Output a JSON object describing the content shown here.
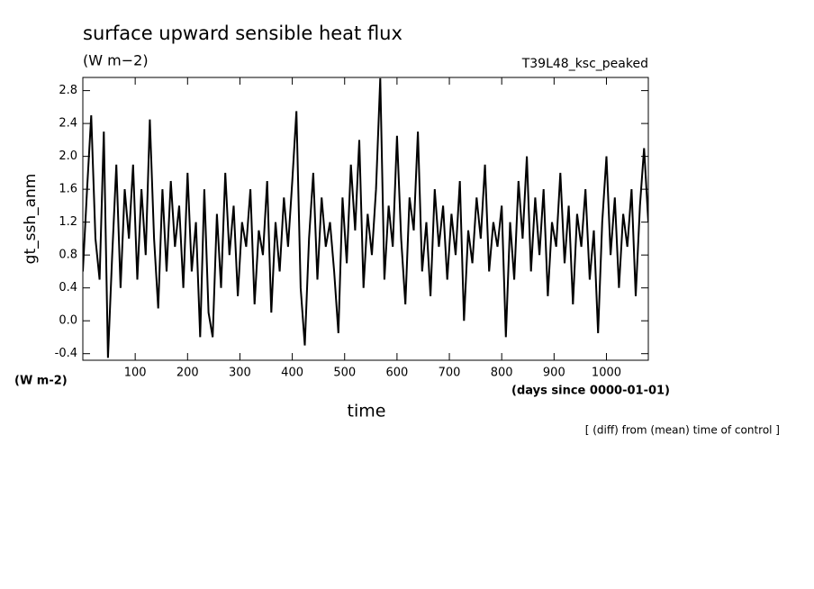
{
  "chart_data": {
    "type": "line",
    "title": "surface upward sensible heat flux",
    "units": "(W m−2)",
    "experiment": "T39L48_ksc_peaked",
    "y_label": "gt_ssh_anm",
    "y_units": "(W m-2)",
    "x_label": "time",
    "x_units": "(days since 0000-01-01)",
    "note": "[ (diff) from (mean) time of control ]",
    "color": "#000000",
    "xlim": [
      0,
      1080
    ],
    "ylim": [
      -0.48,
      2.96
    ],
    "xticks": [
      100,
      200,
      300,
      400,
      500,
      600,
      700,
      800,
      900,
      1000
    ],
    "yticks": [
      -0.4,
      {
        "value": 0,
        "label": "0.0"
      },
      0.4,
      0.8,
      1.2,
      1.6,
      {
        "value": 2,
        "label": "2.0"
      },
      2.4,
      2.8
    ],
    "x": [
      0,
      8,
      16,
      24,
      32,
      40,
      48,
      56,
      64,
      72,
      80,
      88,
      96,
      104,
      112,
      120,
      128,
      136,
      144,
      152,
      160,
      168,
      176,
      184,
      192,
      200,
      208,
      216,
      224,
      232,
      240,
      248,
      256,
      264,
      272,
      280,
      288,
      296,
      304,
      312,
      320,
      328,
      336,
      344,
      352,
      360,
      368,
      376,
      384,
      392,
      400,
      408,
      416,
      424,
      432,
      440,
      448,
      456,
      464,
      472,
      480,
      488,
      496,
      504,
      512,
      520,
      528,
      536,
      544,
      552,
      560,
      568,
      576,
      584,
      592,
      600,
      608,
      616,
      624,
      632,
      640,
      648,
      656,
      664,
      672,
      680,
      688,
      696,
      704,
      712,
      720,
      728,
      736,
      744,
      752,
      760,
      768,
      776,
      784,
      792,
      800,
      808,
      816,
      824,
      832,
      840,
      848,
      856,
      864,
      872,
      880,
      888,
      896,
      904,
      912,
      920,
      928,
      936,
      944,
      952,
      960,
      968,
      976,
      984,
      992,
      1000,
      1008,
      1016,
      1024,
      1032,
      1040,
      1048,
      1056,
      1064,
      1072,
      1080
    ],
    "values": [
      0.6,
      1.6,
      2.5,
      1.0,
      0.5,
      2.3,
      -0.45,
      0.8,
      1.9,
      0.4,
      1.6,
      1.0,
      1.9,
      0.5,
      1.6,
      0.8,
      2.45,
      1.0,
      0.15,
      1.6,
      0.6,
      1.7,
      0.9,
      1.4,
      0.4,
      1.8,
      0.6,
      1.2,
      -0.2,
      1.6,
      0.1,
      -0.2,
      1.3,
      0.4,
      1.8,
      0.8,
      1.4,
      0.3,
      1.2,
      0.9,
      1.6,
      0.2,
      1.1,
      0.8,
      1.7,
      0.1,
      1.2,
      0.6,
      1.5,
      0.9,
      1.7,
      2.55,
      0.4,
      -0.3,
      1.0,
      1.8,
      0.5,
      1.5,
      0.9,
      1.2,
      0.6,
      -0.15,
      1.5,
      0.7,
      1.9,
      1.1,
      2.2,
      0.4,
      1.3,
      0.8,
      1.6,
      2.95,
      0.5,
      1.4,
      0.9,
      2.25,
      1.0,
      0.2,
      1.5,
      1.1,
      2.3,
      0.6,
      1.2,
      0.3,
      1.6,
      0.9,
      1.4,
      0.5,
      1.3,
      0.8,
      1.7,
      0.0,
      1.1,
      0.7,
      1.5,
      1.0,
      1.9,
      0.6,
      1.2,
      0.9,
      1.4,
      -0.2,
      1.2,
      0.5,
      1.7,
      1.0,
      2.0,
      0.6,
      1.5,
      0.8,
      1.6,
      0.3,
      1.2,
      0.9,
      1.8,
      0.7,
      1.4,
      0.2,
      1.3,
      0.9,
      1.6,
      0.5,
      1.1,
      -0.15,
      1.2,
      2.0,
      0.8,
      1.5,
      0.4,
      1.3,
      0.9,
      1.6,
      0.3,
      1.4,
      2.1,
      1.2
    ]
  }
}
